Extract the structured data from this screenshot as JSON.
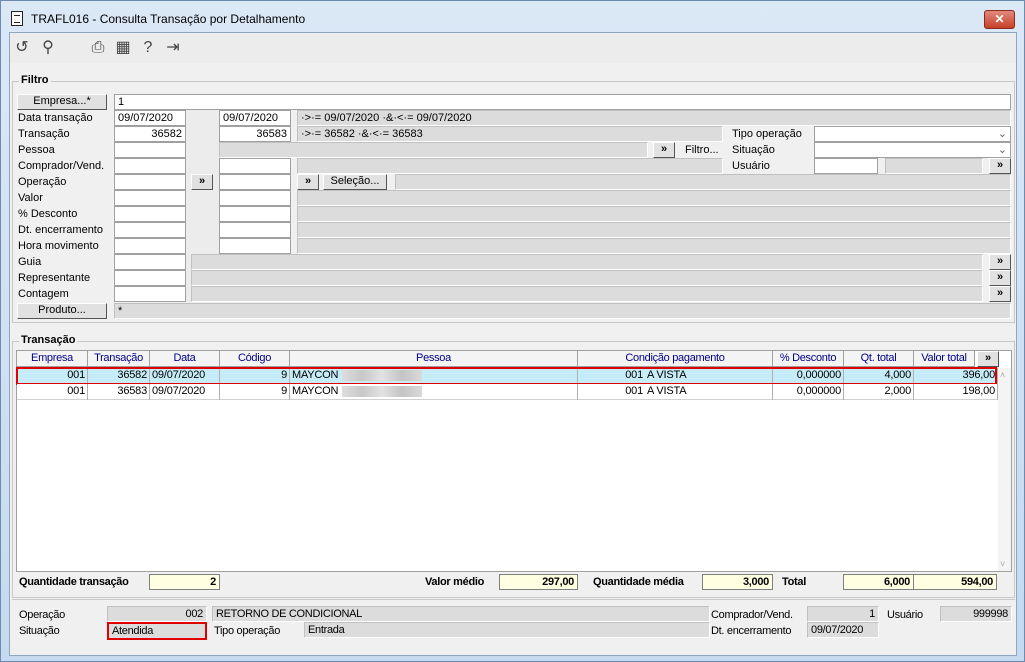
{
  "window": {
    "title": "TRAFL016 - Consulta Transação por Detalhamento",
    "close": "✕"
  },
  "toolbar": {
    "icons": [
      "undo-icon",
      "search-icon",
      "print-icon",
      "calendar-icon",
      "help-icon",
      "exit-icon"
    ]
  },
  "filtro": {
    "title": "Filtro",
    "empresa_button": "Empresa...*",
    "empresa_value": "1",
    "rows": {
      "data": {
        "label": "Data transação",
        "from": "09/07/2020",
        "to": "09/07/2020",
        "expr": "·>·= 09/07/2020 ·&·<·= 09/07/2020"
      },
      "transacao": {
        "label": "Transação",
        "from": "36582",
        "to": "36583",
        "expr": "·>·= 36582 ·&·<·= 36583"
      },
      "pessoa": {
        "label": "Pessoa"
      },
      "comprador": {
        "label": "Comprador/Vend."
      },
      "operacao": {
        "label": "Operação"
      },
      "valor": {
        "label": "Valor"
      },
      "desconto": {
        "label": "% Desconto"
      },
      "encerramento": {
        "label": "Dt. encerramento"
      },
      "hora": {
        "label": "Hora movimento"
      },
      "guia": {
        "label": "Guia"
      },
      "representante": {
        "label": "Representante"
      },
      "contagem": {
        "label": "Contagem"
      }
    },
    "produto_button": "Produto...",
    "produto_value": "*",
    "more": "»",
    "filtro_button": "Filtro...",
    "selecao_button": "Seleção...",
    "tipo_operacao": {
      "label": "Tipo operação",
      "value": ""
    },
    "situacao": {
      "label": "Situação",
      "value": ""
    },
    "usuario": {
      "label": "Usuário",
      "value": ""
    }
  },
  "transacao": {
    "title": "Transação",
    "columns": [
      "Empresa",
      "Transação",
      "Data",
      "Código",
      "Pessoa",
      "Condição pagamento",
      "% Desconto",
      "Qt. total",
      "Valor total",
      "»"
    ],
    "rows": [
      {
        "empresa": "001",
        "transacao": "36582",
        "data": "09/07/2020",
        "codigo": "9",
        "pessoa": "MAYCON",
        "cond_cod": "001",
        "cond": "A VISTA",
        "desconto": "0,000000",
        "qt": "4,000",
        "valor": "396,00",
        "selected": true
      },
      {
        "empresa": "001",
        "transacao": "36583",
        "data": "09/07/2020",
        "codigo": "9",
        "pessoa": "MAYCON",
        "cond_cod": "001",
        "cond": "A VISTA",
        "desconto": "0,000000",
        "qt": "2,000",
        "valor": "198,00",
        "selected": false
      }
    ],
    "totals": {
      "qtd_label": "Quantidade transação",
      "qtd": "2",
      "valor_medio_label": "Valor médio",
      "valor_medio": "297,00",
      "qtd_media_label": "Quantidade média",
      "qtd_media": "3,000",
      "total_label": "Total",
      "total_qt": "6,000",
      "total_valor": "594,00"
    }
  },
  "detail": {
    "operacao_label": "Operação",
    "operacao_cod": "002",
    "operacao_desc": "RETORNO DE CONDICIONAL",
    "comprador_label": "Comprador/Vend.",
    "comprador": "1",
    "usuario_label": "Usuário",
    "usuario": "999998",
    "situacao_label": "Situação",
    "situacao": "Atendida",
    "tipo_label": "Tipo operação",
    "tipo": "Entrada",
    "encerramento_label": "Dt. encerramento",
    "encerramento": "09/07/2020"
  },
  "colors": {
    "highlight": "#e00000",
    "selected_row": "#c5ecf7",
    "totals_bg": "#ffffe1"
  }
}
